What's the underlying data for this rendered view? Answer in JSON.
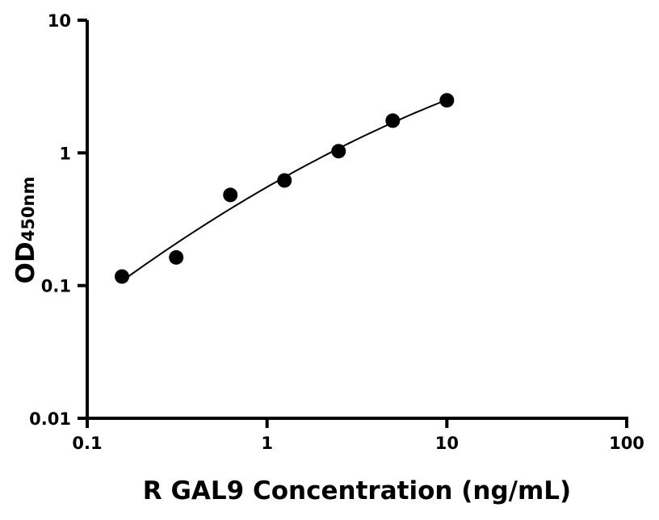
{
  "chart_data": {
    "type": "scatter",
    "title": "",
    "xlabel": "R GAL9 Concentration (ng/mL)",
    "ylabel_main": "OD",
    "ylabel_sub": "450nm",
    "xscale": "log",
    "yscale": "log",
    "xlim": [
      0.1,
      100
    ],
    "ylim": [
      0.01,
      10
    ],
    "xticks": [
      0.1,
      1,
      10,
      100
    ],
    "xtick_labels": [
      "0.1",
      "1",
      "10",
      "100"
    ],
    "yticks": [
      0.01,
      0.1,
      1,
      10
    ],
    "ytick_labels": [
      "0.01",
      "0.1",
      "1",
      "10"
    ],
    "grid": false,
    "legend": "none",
    "points": {
      "x": [
        0.156,
        0.3125,
        0.625,
        1.25,
        2.5,
        5,
        10
      ],
      "y": [
        0.117,
        0.163,
        0.482,
        0.62,
        1.03,
        1.75,
        2.49
      ]
    },
    "fit_curve": true,
    "color": "#000000"
  }
}
